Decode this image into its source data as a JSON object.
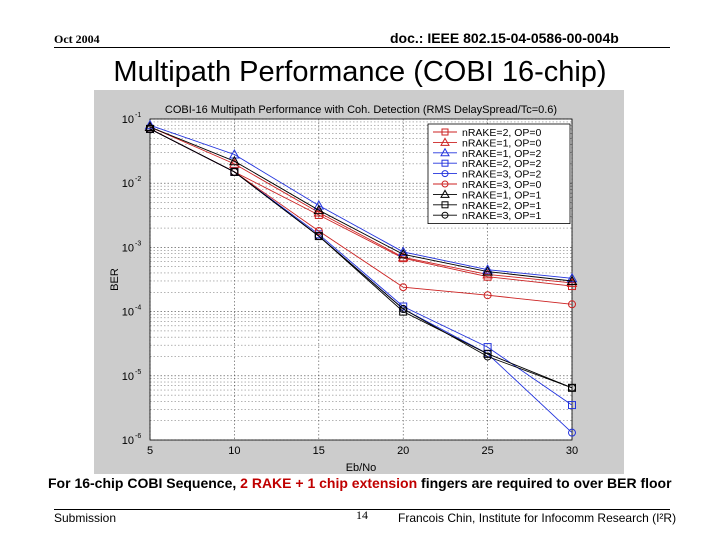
{
  "header": {
    "date": "Oct 2004",
    "doc_id": "doc.: IEEE 802.15-04-0586-00-004b"
  },
  "slide_title": "Multipath Performance (COBI 16-chip)",
  "caption": {
    "pre": "For 16-chip COBI Sequence, ",
    "highlight": "2 RAKE + 1 chip extension",
    "post": " fingers are required to over BER floor"
  },
  "footer": {
    "left": "Submission",
    "page": "14",
    "right": "Francois Chin, Institute for Infocomm Research (I²R)"
  },
  "colors": {
    "plot_bg": "#ffffff",
    "figure_bg": "#cccccc",
    "grid": "#444444",
    "black": "#000000",
    "red": "#cc2222",
    "blue": "#2233dd",
    "caption_highlight": "#c00000"
  },
  "chart_data": {
    "type": "line",
    "title": "COBI-16 Multipath Performance with Coh. Detection (RMS DelaySpread/Tc=0.6)",
    "xlabel": "Eb/No",
    "ylabel": "BER",
    "x": [
      5,
      10,
      15,
      20,
      25,
      30
    ],
    "xlim": [
      5,
      30
    ],
    "ylim": [
      1e-06,
      0.1
    ],
    "yscale": "log",
    "grid": true,
    "legend_position": "top-right",
    "xticks": [
      "5",
      "10",
      "15",
      "20",
      "25",
      "30"
    ],
    "yticks": [
      {
        "value": 0.1,
        "base": "10",
        "exp": "-1"
      },
      {
        "value": 0.01,
        "base": "10",
        "exp": "-2"
      },
      {
        "value": 0.001,
        "base": "10",
        "exp": "-3"
      },
      {
        "value": 0.0001,
        "base": "10",
        "exp": "-4"
      },
      {
        "value": 1e-05,
        "base": "10",
        "exp": "-5"
      },
      {
        "value": 1e-06,
        "base": "10",
        "exp": "-6"
      }
    ],
    "series": [
      {
        "name": "nRAKE=2, OP=0",
        "color": "red",
        "marker": "square",
        "values": [
          0.07,
          0.015,
          0.0032,
          0.00068,
          0.00035,
          0.00025
        ]
      },
      {
        "name": "nRAKE=1, OP=0",
        "color": "red",
        "marker": "triangle",
        "values": [
          0.075,
          0.02,
          0.0035,
          0.0007,
          0.00038,
          0.00028
        ]
      },
      {
        "name": "nRAKE=1, OP=2",
        "color": "blue",
        "marker": "triangle",
        "values": [
          0.08,
          0.028,
          0.0045,
          0.00085,
          0.00045,
          0.00033
        ]
      },
      {
        "name": "nRAKE=2, OP=2",
        "color": "blue",
        "marker": "square",
        "values": [
          0.07,
          0.015,
          0.0016,
          0.00012,
          2.8e-05,
          3.5e-06
        ]
      },
      {
        "name": "nRAKE=3, OP=2",
        "color": "blue",
        "marker": "circle",
        "values": [
          0.07,
          0.015,
          0.0015,
          0.00011,
          2.2e-05,
          1.3e-06
        ]
      },
      {
        "name": "nRAKE=3, OP=0",
        "color": "red",
        "marker": "circle",
        "values": [
          0.07,
          0.015,
          0.0018,
          0.00024,
          0.00018,
          0.00013
        ]
      },
      {
        "name": "nRAKE=1, OP=1",
        "color": "black",
        "marker": "triangle",
        "values": [
          0.075,
          0.022,
          0.0038,
          0.00078,
          0.00042,
          0.0003
        ]
      },
      {
        "name": "nRAKE=2, OP=1",
        "color": "black",
        "marker": "square",
        "values": [
          0.07,
          0.015,
          0.0015,
          0.0001,
          2.2e-05,
          6.5e-06
        ]
      },
      {
        "name": "nRAKE=3, OP=1",
        "color": "black",
        "marker": "circle",
        "values": [
          0.07,
          0.015,
          0.0015,
          0.00011,
          2e-05,
          6.5e-06
        ]
      }
    ]
  }
}
